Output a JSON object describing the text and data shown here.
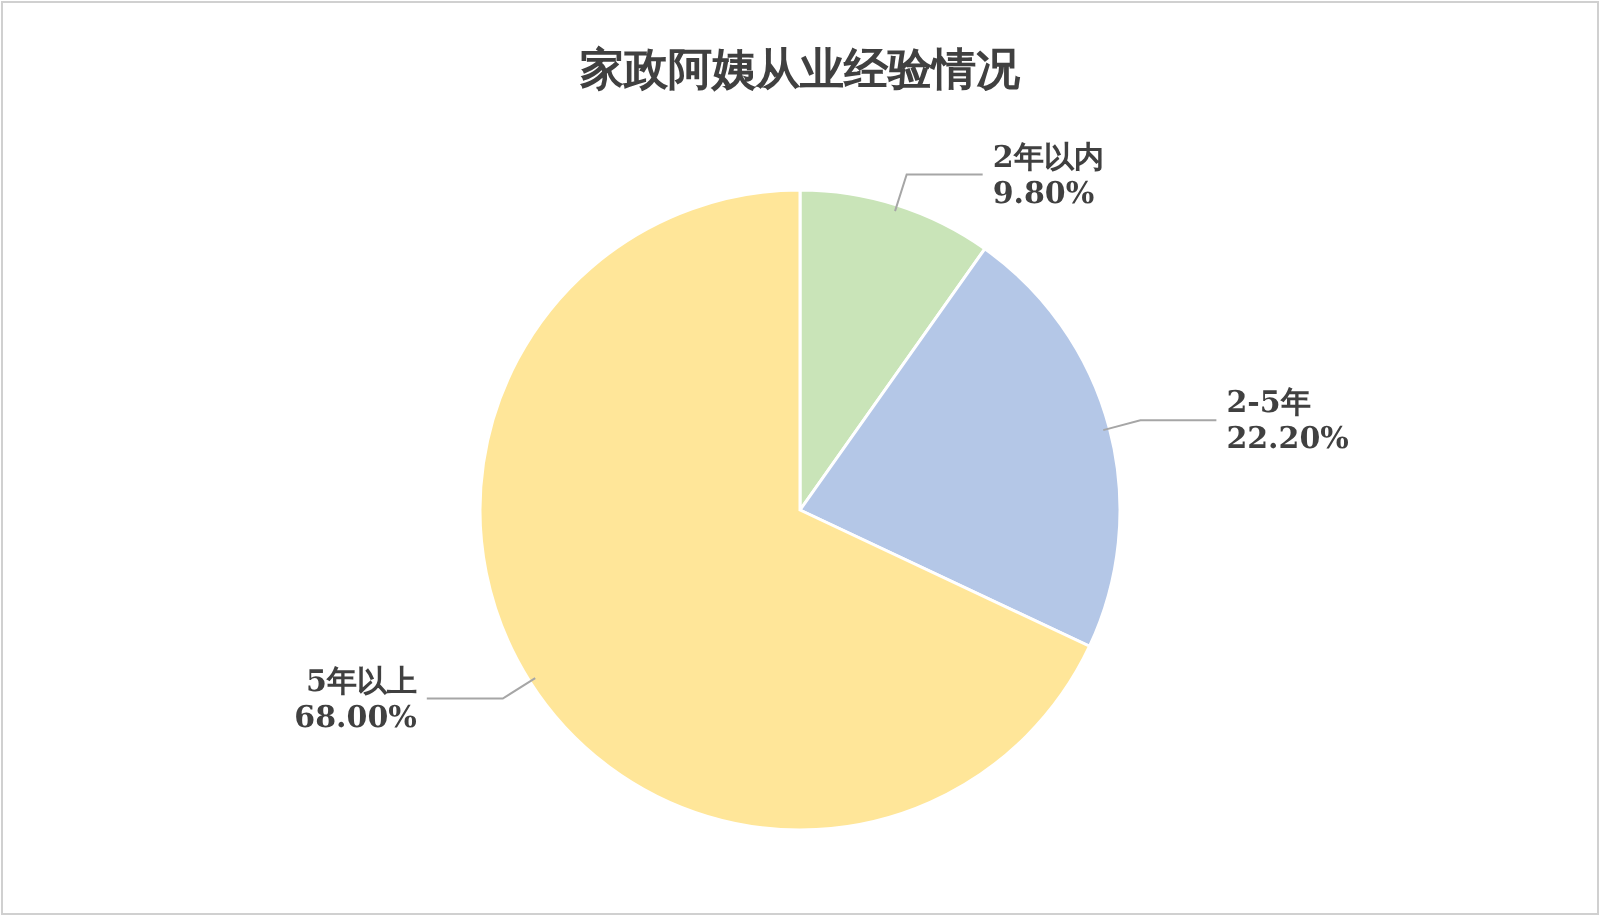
{
  "chart_data": {
    "type": "pie",
    "title": "家政阿姨从业经验情况",
    "categories": [
      "2年以内",
      "2-5年",
      "5年以上"
    ],
    "values": [
      9.8,
      22.2,
      68.0
    ],
    "value_labels": [
      "9.80%",
      "22.20%",
      "68.00%"
    ],
    "colors": [
      "#c9e4b8",
      "#b4c7e7",
      "#ffe699"
    ],
    "legend": false
  }
}
